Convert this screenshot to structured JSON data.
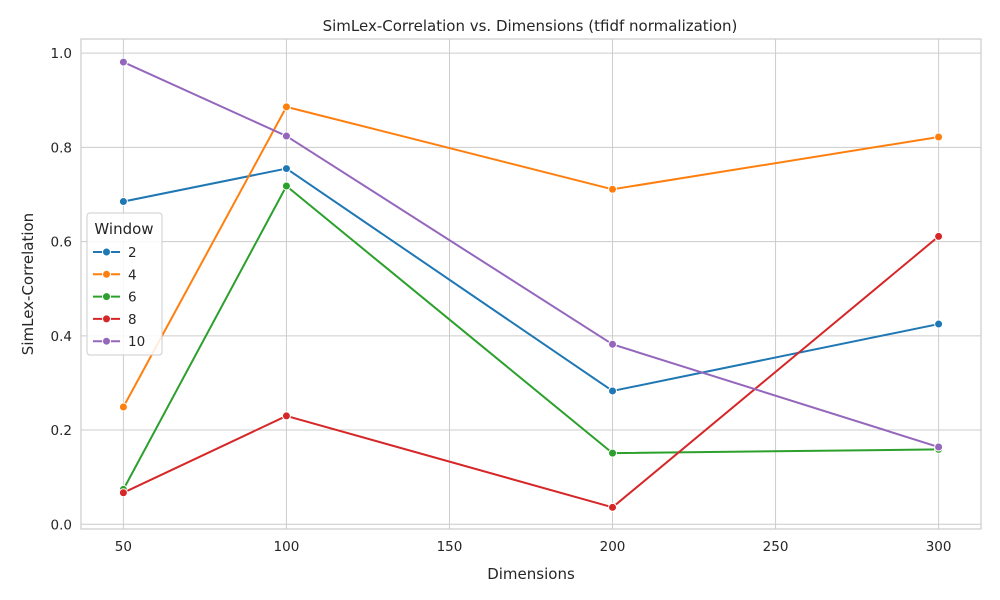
{
  "chart_data": {
    "type": "line",
    "title": "SimLex-Correlation vs. Dimensions (tfidf normalization)",
    "xlabel": "Dimensions",
    "ylabel": "SimLex-Correlation",
    "xlim": [
      37,
      313
    ],
    "ylim": [
      -0.01,
      1.03
    ],
    "xticks": [
      50,
      100,
      150,
      200,
      250,
      300
    ],
    "yticks": [
      0.0,
      0.2,
      0.4,
      0.6,
      0.8,
      1.0
    ],
    "grid": true,
    "legend": {
      "title": "Window",
      "placement": "center-left"
    },
    "x": [
      50,
      100,
      200,
      300
    ],
    "series": [
      {
        "name": "2",
        "color": "#1f77b4",
        "values": [
          0.685,
          0.755,
          0.283,
          0.425
        ]
      },
      {
        "name": "4",
        "color": "#ff7f0e",
        "values": [
          0.249,
          0.886,
          0.711,
          0.822
        ]
      },
      {
        "name": "6",
        "color": "#2ca02c",
        "values": [
          0.074,
          0.718,
          0.151,
          0.159
        ]
      },
      {
        "name": "8",
        "color": "#d62728",
        "values": [
          0.067,
          0.23,
          0.036,
          0.611
        ]
      },
      {
        "name": "10",
        "color": "#9467bd",
        "values": [
          0.981,
          0.824,
          0.382,
          0.164
        ]
      }
    ]
  }
}
